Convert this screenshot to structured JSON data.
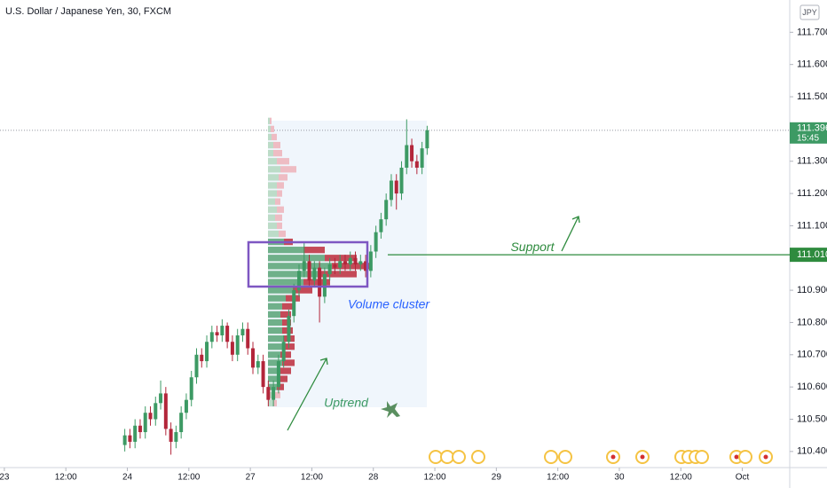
{
  "header": {
    "title": "U.S. Dollar / Japanese Yen, 30, FXCM",
    "currency": "JPY"
  },
  "chart_data": {
    "type": "candlestick",
    "x": [
      47,
      49,
      51,
      53,
      55,
      57,
      59,
      61,
      63,
      65,
      67,
      69,
      71,
      73,
      75,
      77,
      79,
      81,
      83,
      85,
      87,
      89,
      91,
      93,
      95,
      97,
      99,
      101,
      103,
      105,
      107,
      109,
      111,
      113,
      115,
      117,
      119,
      121,
      123,
      125,
      127,
      129,
      131,
      133,
      135,
      137,
      139,
      141,
      143,
      145,
      147,
      149,
      151,
      153,
      155,
      157,
      159,
      161,
      163,
      165
    ],
    "open": [
      110.42,
      110.45,
      110.43,
      110.48,
      110.46,
      110.52,
      110.5,
      110.55,
      110.58,
      110.47,
      110.43,
      110.46,
      110.52,
      110.56,
      110.63,
      110.7,
      110.68,
      110.74,
      110.77,
      110.76,
      110.79,
      110.74,
      110.7,
      110.76,
      110.78,
      110.72,
      110.66,
      110.68,
      110.6,
      110.56,
      110.6,
      110.68,
      110.74,
      110.82,
      110.9,
      110.96,
      110.99,
      110.93,
      110.97,
      110.88,
      110.95,
      110.98,
      110.97,
      110.99,
      110.98,
      111.0,
      110.98,
      110.99,
      110.96,
      111.02,
      111.08,
      111.12,
      111.18,
      111.24,
      111.2,
      111.28,
      111.35,
      111.3,
      111.28,
      111.34
    ],
    "high": [
      110.47,
      110.47,
      110.5,
      110.5,
      110.54,
      110.54,
      110.57,
      110.62,
      110.6,
      110.49,
      110.48,
      110.54,
      110.58,
      110.65,
      110.72,
      110.72,
      110.76,
      110.79,
      110.79,
      110.81,
      110.8,
      110.76,
      110.78,
      110.8,
      110.8,
      110.74,
      110.7,
      110.7,
      110.62,
      110.62,
      110.7,
      110.76,
      110.84,
      110.92,
      110.98,
      111.05,
      111.01,
      110.99,
      110.99,
      110.97,
      111.0,
      111.0,
      111.01,
      111.01,
      111.02,
      111.02,
      111.01,
      111.01,
      111.04,
      111.1,
      111.14,
      111.2,
      111.26,
      111.26,
      111.3,
      111.43,
      111.37,
      111.32,
      111.36,
      111.41
    ],
    "low": [
      110.4,
      110.41,
      110.41,
      110.44,
      110.44,
      110.48,
      110.48,
      110.53,
      110.45,
      110.39,
      110.41,
      110.44,
      110.5,
      110.54,
      110.61,
      110.66,
      110.66,
      110.72,
      110.74,
      110.74,
      110.72,
      110.68,
      110.68,
      110.74,
      110.7,
      110.64,
      110.64,
      110.58,
      110.54,
      110.54,
      110.58,
      110.66,
      110.72,
      110.8,
      110.88,
      110.94,
      110.91,
      110.91,
      110.8,
      110.86,
      110.93,
      110.95,
      110.95,
      110.96,
      110.96,
      110.96,
      110.96,
      110.94,
      110.94,
      111.0,
      111.06,
      111.1,
      111.16,
      111.15,
      111.18,
      111.26,
      111.28,
      111.26,
      111.26,
      111.32
    ],
    "close": [
      110.45,
      110.43,
      110.48,
      110.46,
      110.52,
      110.5,
      110.55,
      110.58,
      110.47,
      110.43,
      110.46,
      110.52,
      110.56,
      110.63,
      110.7,
      110.68,
      110.74,
      110.77,
      110.76,
      110.79,
      110.74,
      110.7,
      110.76,
      110.78,
      110.72,
      110.66,
      110.68,
      110.6,
      110.56,
      110.6,
      110.68,
      110.74,
      110.82,
      110.9,
      110.96,
      110.99,
      110.93,
      110.97,
      110.88,
      110.95,
      110.98,
      110.97,
      110.99,
      110.98,
      111.0,
      110.98,
      110.99,
      110.96,
      111.02,
      111.08,
      111.12,
      111.18,
      111.24,
      111.2,
      111.28,
      111.35,
      111.3,
      111.28,
      111.34,
      111.396
    ],
    "up_color": "#3d9a64",
    "down_color": "#b3263a",
    "xlim": [
      -1.7,
      306.5
    ],
    "xticks": [
      {
        "value": 0,
        "label": "23"
      },
      {
        "value": 24,
        "label": "12:00"
      },
      {
        "value": 48,
        "label": "24"
      },
      {
        "value": 72,
        "label": "12:00"
      },
      {
        "value": 96,
        "label": "27"
      },
      {
        "value": 120,
        "label": "12:00"
      },
      {
        "value": 144,
        "label": "28"
      },
      {
        "value": 168,
        "label": "12:00"
      },
      {
        "value": 192,
        "label": "29"
      },
      {
        "value": 216,
        "label": "12:00"
      },
      {
        "value": 240,
        "label": "30"
      },
      {
        "value": 264,
        "label": "12:00"
      },
      {
        "value": 288,
        "label": "Oct"
      }
    ],
    "ylim": [
      110.35,
      111.8
    ],
    "yticks": [
      {
        "value": 110.4,
        "label": "110.400"
      },
      {
        "value": 110.5,
        "label": "110.500"
      },
      {
        "value": 110.6,
        "label": "110.600"
      },
      {
        "value": 110.7,
        "label": "110.700"
      },
      {
        "value": 110.8,
        "label": "110.800"
      },
      {
        "value": 110.9,
        "label": "110.900"
      },
      {
        "value": 111.1,
        "label": "111.100"
      },
      {
        "value": 111.2,
        "label": "111.200"
      },
      {
        "value": 111.3,
        "label": "111.300"
      },
      {
        "value": 111.5,
        "label": "111.500"
      },
      {
        "value": 111.6,
        "label": "111.600"
      },
      {
        "value": 111.7,
        "label": "111.700"
      }
    ],
    "grid": false,
    "last_price": {
      "value": 111.396,
      "label": "111.396",
      "countdown": "15:45",
      "color": "#3d9a64"
    },
    "support": {
      "value": 111.01,
      "label": "111.010",
      "text": "Support",
      "color": "#2e8b3e"
    },
    "volume_profile": {
      "levels": [
        110.55,
        110.575,
        110.6,
        110.625,
        110.65,
        110.675,
        110.7,
        110.725,
        110.75,
        110.775,
        110.8,
        110.825,
        110.85,
        110.875,
        110.9,
        110.925,
        110.95,
        110.975,
        111.0,
        111.025,
        111.05,
        111.075,
        111.1,
        111.125,
        111.15,
        111.175,
        111.2,
        111.225,
        111.25,
        111.275,
        111.3,
        111.325,
        111.35,
        111.375,
        111.4,
        111.425
      ],
      "up": [
        6,
        8,
        10,
        12,
        14,
        16,
        14,
        16,
        18,
        16,
        16,
        14,
        16,
        20,
        28,
        40,
        60,
        72,
        64,
        40,
        18,
        12,
        10,
        8,
        10,
        8,
        10,
        10,
        12,
        14,
        10,
        6,
        6,
        4,
        3,
        2
      ],
      "down": [
        4,
        6,
        8,
        10,
        12,
        14,
        12,
        14,
        12,
        12,
        10,
        12,
        14,
        16,
        22,
        30,
        40,
        42,
        36,
        24,
        10,
        8,
        6,
        8,
        8,
        6,
        6,
        8,
        10,
        18,
        14,
        10,
        8,
        6,
        4,
        2
      ],
      "value_area": [
        110.6,
        111.05
      ]
    },
    "annotations": {
      "volume_cluster": "Volume cluster",
      "uptrend": "Uptrend"
    }
  }
}
